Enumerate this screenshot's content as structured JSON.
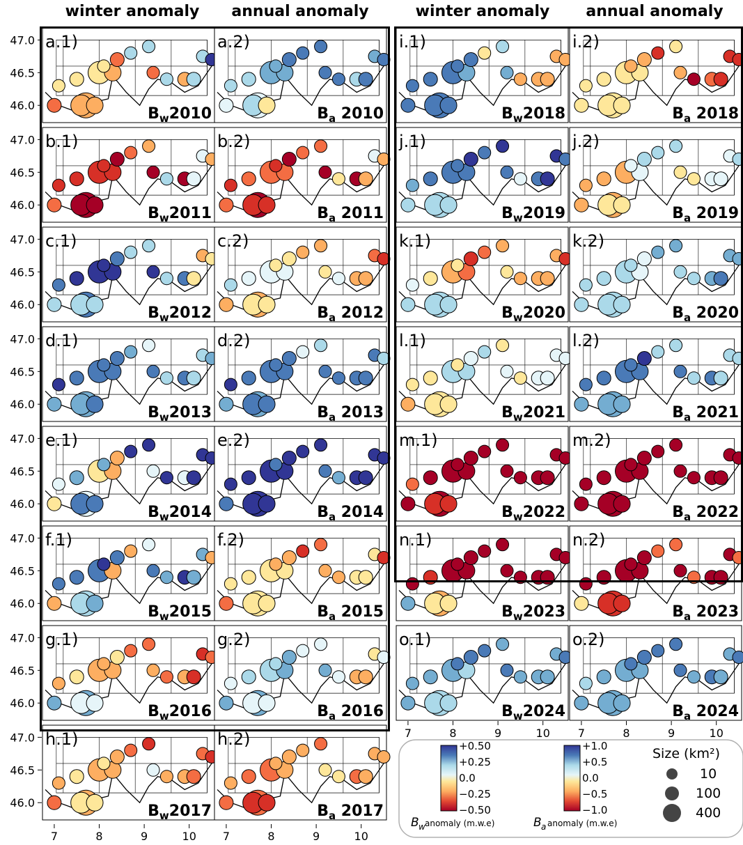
{
  "headers": [
    "winter anomaly",
    "annual anomaly",
    "winter anomaly",
    "annual anomaly"
  ],
  "y_ticks": [
    "47.0",
    "46.5",
    "46.0"
  ],
  "x_ticks": [
    "7",
    "8",
    "9",
    "10"
  ],
  "legend": {
    "bw_ticks": [
      "+0.50",
      "+0.25",
      "0.0",
      "−0.25",
      "−0.50"
    ],
    "ba_ticks": [
      "+1.0",
      "+0.5",
      "0.0",
      "−0.5",
      "−1.0"
    ],
    "bw_label_sym": "B",
    "bw_label_sub": "w",
    "bw_label_rest": " anomaly (m.w.e)",
    "ba_label_sym": "B",
    "ba_label_sub": "a",
    "ba_label_rest": " anomaly (m.w.e)",
    "size_title": "Size (km²)",
    "sizes": [
      "10",
      "100",
      "400"
    ]
  },
  "chart_data": {
    "type": "scatter",
    "xlim": [
      6.8,
      10.5
    ],
    "ylim": [
      45.8,
      47.1
    ],
    "bw_colorbar": [
      -0.5,
      0.5
    ],
    "ba_colorbar": [
      -1.0,
      1.0
    ],
    "glacier_sizes_km2": [
      10,
      100,
      400
    ],
    "panels": [
      {
        "id": "a.1)",
        "year": "2010",
        "kind": "w",
        "label": "Bw2010",
        "dots": [
          7,
          6,
          6,
          6,
          5,
          5,
          5,
          6,
          7,
          5,
          7,
          3,
          6,
          3,
          3,
          3,
          3,
          0
        ]
      },
      {
        "id": "a.2)",
        "year": "2010",
        "kind": "a",
        "label": "Ba 2010",
        "dots": [
          4,
          4,
          3,
          5,
          3,
          3,
          2,
          2,
          1,
          2,
          1,
          1,
          3,
          1,
          2,
          1,
          1,
          1
        ]
      },
      {
        "id": "b.1)",
        "year": "2011",
        "kind": "w",
        "label": "Bw2011",
        "dots": [
          7,
          9,
          9,
          9,
          8,
          8,
          8,
          8,
          9,
          8,
          9,
          3,
          9,
          4,
          4,
          6,
          7,
          6
        ]
      },
      {
        "id": "b.2)",
        "year": "2011",
        "kind": "a",
        "label": "Ba 2011",
        "dots": [
          7,
          9,
          8,
          8,
          8,
          7,
          7,
          7,
          9,
          8,
          9,
          5,
          9,
          6,
          4,
          7,
          7,
          6
        ]
      },
      {
        "id": "c.1)",
        "year": "2012",
        "kind": "w",
        "label": "Bw2012",
        "dots": [
          3,
          1,
          3,
          3,
          1,
          0,
          0,
          0,
          1,
          0,
          0,
          3,
          1,
          5,
          6,
          3,
          3,
          5
        ]
      },
      {
        "id": "c.2)",
        "year": "2012",
        "kind": "a",
        "label": "Ba 2012",
        "dots": [
          6,
          6,
          5,
          5,
          3,
          4,
          4,
          4,
          5,
          5,
          5,
          4,
          6,
          6,
          7,
          6,
          6,
          8
        ]
      },
      {
        "id": "d.1)",
        "year": "2013",
        "kind": "w",
        "label": "Bw2013",
        "dots": [
          2,
          2,
          2,
          1,
          0,
          1,
          1,
          1,
          1,
          1,
          1,
          3,
          1,
          3,
          3,
          4,
          2,
          2
        ]
      },
      {
        "id": "d.2)",
        "year": "2013",
        "kind": "a",
        "label": "Ba 2013",
        "dots": [
          2,
          2,
          1,
          1,
          0,
          1,
          1,
          1,
          1,
          1,
          1,
          1,
          1,
          1,
          1,
          3,
          4,
          3
        ]
      },
      {
        "id": "e.1)",
        "year": "2014",
        "kind": "w",
        "label": "Bw2014",
        "dots": [
          5,
          4,
          1,
          1,
          4,
          2,
          5,
          6,
          6,
          2,
          4,
          0,
          4,
          0,
          0,
          0,
          0,
          0
        ]
      },
      {
        "id": "e.2)",
        "year": "2014",
        "kind": "a",
        "label": "Ba 2014",
        "dots": [
          1,
          0,
          0,
          0,
          0,
          0,
          0,
          0,
          0,
          1,
          1,
          2,
          0,
          0,
          0,
          0,
          0,
          0
        ]
      },
      {
        "id": "f.1)",
        "year": "2015",
        "kind": "w",
        "label": "Bw2015",
        "dots": [
          6,
          3,
          3,
          2,
          1,
          1,
          1,
          6,
          1,
          0,
          1,
          2,
          0,
          2,
          2,
          4,
          6,
          6
        ]
      },
      {
        "id": "f.2)",
        "year": "2015",
        "kind": "a",
        "label": "Ba 2015",
        "dots": [
          7,
          5,
          5,
          5,
          5,
          5,
          5,
          5,
          6,
          6,
          6,
          6,
          5,
          5,
          5,
          7,
          8,
          8
        ]
      },
      {
        "id": "g.1)",
        "year": "2016",
        "kind": "w",
        "label": "Bw2016",
        "dots": [
          2,
          2,
          4,
          4,
          6,
          5,
          6,
          6,
          5,
          6,
          6,
          7,
          6,
          8,
          8,
          7,
          7,
          7
        ]
      },
      {
        "id": "g.2)",
        "year": "2016",
        "kind": "a",
        "label": "Ba 2016",
        "dots": [
          2,
          2,
          4,
          4,
          4,
          3,
          3,
          2,
          2,
          3,
          2,
          4,
          6,
          6,
          5,
          4,
          4,
          4
        ]
      },
      {
        "id": "h.1)",
        "year": "2017",
        "kind": "w",
        "label": "Bw2017",
        "dots": [
          7,
          6,
          5,
          5,
          6,
          5,
          6,
          6,
          6,
          5,
          4,
          6,
          6,
          7,
          7,
          8,
          7,
          8
        ]
      },
      {
        "id": "h.2)",
        "year": "2017",
        "kind": "a",
        "label": "Ba 2017",
        "dots": [
          7,
          7,
          8,
          8,
          6,
          7,
          7,
          6,
          6,
          6,
          5,
          5,
          7,
          6,
          6,
          7,
          6,
          6
        ]
      },
      {
        "id": "i.1)",
        "year": "2018",
        "kind": "w",
        "label": "Bw2018",
        "dots": [
          1,
          1,
          1,
          1,
          1,
          1,
          1,
          2,
          1,
          1,
          2,
          6,
          6,
          6,
          6,
          3,
          5,
          6
        ]
      },
      {
        "id": "i.2)",
        "year": "2018",
        "kind": "a",
        "label": "Ba 2018",
        "dots": [
          5,
          5,
          5,
          5,
          5,
          5,
          5,
          5,
          6,
          6,
          6,
          9,
          7,
          8,
          8,
          5,
          8,
          8
        ]
      },
      {
        "id": "j.1)",
        "year": "2019",
        "kind": "w",
        "label": "Bw2019",
        "dots": [
          3,
          3,
          3,
          3,
          2,
          1,
          1,
          1,
          0,
          1,
          1,
          4,
          1,
          0,
          0,
          0,
          1,
          1
        ]
      },
      {
        "id": "j.2)",
        "year": "2019",
        "kind": "a",
        "label": "Ba 2019",
        "dots": [
          6,
          6,
          5,
          5,
          6,
          6,
          6,
          4,
          3,
          4,
          5,
          5,
          4,
          4,
          4,
          3,
          3,
          3
        ]
      },
      {
        "id": "k.1)",
        "year": "2020",
        "kind": "w",
        "label": "Bw2020",
        "dots": [
          3,
          3,
          3,
          3,
          4,
          5,
          6,
          7,
          8,
          5,
          5,
          6,
          6,
          6,
          6,
          6,
          7,
          8
        ]
      },
      {
        "id": "k.2)",
        "year": "2020",
        "kind": "a",
        "label": "Ba 2020",
        "dots": [
          3,
          3,
          3,
          3,
          3,
          3,
          3,
          4,
          4,
          3,
          3,
          3,
          2,
          1,
          2,
          2,
          2,
          2
        ]
      },
      {
        "id": "l.1)",
        "year": "2021",
        "kind": "w",
        "label": "Bw2021",
        "dots": [
          6,
          5,
          5,
          5,
          5,
          5,
          3,
          3,
          4,
          5,
          4,
          5,
          4,
          4,
          4,
          5,
          3,
          4
        ]
      },
      {
        "id": "l.2)",
        "year": "2021",
        "kind": "a",
        "label": "Ba 2021",
        "dots": [
          2,
          2,
          2,
          2,
          1,
          1,
          1,
          1,
          0,
          1,
          1,
          3,
          1,
          3,
          3,
          3,
          3,
          3
        ]
      },
      {
        "id": "m.1)",
        "year": "2022",
        "kind": "w",
        "label": "Bw2022",
        "dots": [
          9,
          9,
          8,
          8,
          7,
          9,
          9,
          9,
          9,
          9,
          9,
          9,
          9,
          9,
          9,
          9,
          9,
          9
        ]
      },
      {
        "id": "m.2)",
        "year": "2022",
        "kind": "a",
        "label": "Ba 2022",
        "dots": [
          9,
          9,
          9,
          9,
          9,
          9,
          9,
          9,
          9,
          9,
          9,
          9,
          9,
          9,
          9,
          9,
          9,
          9
        ]
      },
      {
        "id": "n.1)",
        "year": "2023",
        "kind": "w",
        "label": "Bw2023",
        "dots": [
          2,
          6,
          5,
          5,
          9,
          8,
          9,
          9,
          9,
          9,
          9,
          9,
          9,
          9,
          9,
          9,
          9,
          9
        ]
      },
      {
        "id": "n.2)",
        "year": "2023",
        "kind": "a",
        "label": "Ba 2023",
        "dots": [
          5,
          8,
          8,
          8,
          9,
          9,
          9,
          9,
          9,
          9,
          9,
          7,
          9,
          9,
          9,
          7,
          7,
          7
        ]
      },
      {
        "id": "o.1)",
        "year": "2024",
        "kind": "w",
        "label": "Bw2024",
        "dots": [
          2,
          3,
          3,
          3,
          2,
          2,
          2,
          3,
          1,
          1,
          1,
          2,
          2,
          2,
          2,
          2,
          1,
          1
        ]
      },
      {
        "id": "o.2)",
        "year": "2024",
        "kind": "a",
        "label": "Ba 2024",
        "dots": [
          2,
          2,
          2,
          2,
          3,
          2,
          2,
          2,
          1,
          1,
          1,
          2,
          1,
          2,
          2,
          1,
          1,
          1
        ]
      }
    ]
  }
}
